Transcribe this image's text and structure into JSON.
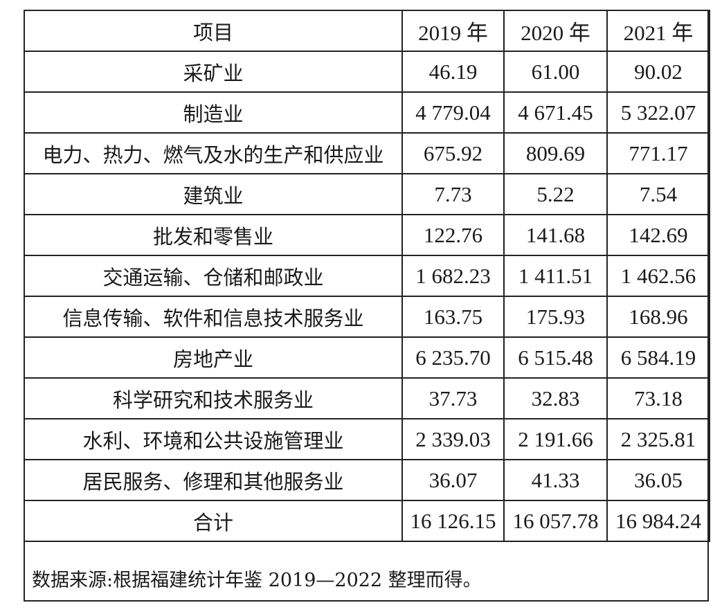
{
  "table": {
    "headers": [
      "项目",
      "2019 年",
      "2020 年",
      "2021 年"
    ],
    "rows": [
      {
        "item": "采矿业",
        "y2019": "46.19",
        "y2020": "61.00",
        "y2021": "90.02"
      },
      {
        "item": "制造业",
        "y2019": "4 779.04",
        "y2020": "4 671.45",
        "y2021": "5 322.07"
      },
      {
        "item": "电力、热力、燃气及水的生产和供应业",
        "y2019": "675.92",
        "y2020": "809.69",
        "y2021": "771.17"
      },
      {
        "item": "建筑业",
        "y2019": "7.73",
        "y2020": "5.22",
        "y2021": "7.54"
      },
      {
        "item": "批发和零售业",
        "y2019": "122.76",
        "y2020": "141.68",
        "y2021": "142.69"
      },
      {
        "item": "交通运输、仓储和邮政业",
        "y2019": "1 682.23",
        "y2020": "1 411.51",
        "y2021": "1 462.56"
      },
      {
        "item": "信息传输、软件和信息技术服务业",
        "y2019": "163.75",
        "y2020": "175.93",
        "y2021": "168.96"
      },
      {
        "item": "房地产业",
        "y2019": "6 235.70",
        "y2020": "6 515.48",
        "y2021": "6 584.19"
      },
      {
        "item": "科学研究和技术服务业",
        "y2019": "37.73",
        "y2020": "32.83",
        "y2021": "73.18"
      },
      {
        "item": "水利、环境和公共设施管理业",
        "y2019": "2 339.03",
        "y2020": "2 191.66",
        "y2021": "2 325.81"
      },
      {
        "item": "居民服务、修理和其他服务业",
        "y2019": "36.07",
        "y2020": "41.33",
        "y2021": "36.05"
      },
      {
        "item": "合计",
        "y2019": "16 126.15",
        "y2020": "16 057.78",
        "y2021": "16 984.24"
      }
    ]
  },
  "footer": {
    "source": "数据来源:根据福建统计年鉴 2019—2022 整理而得。"
  }
}
